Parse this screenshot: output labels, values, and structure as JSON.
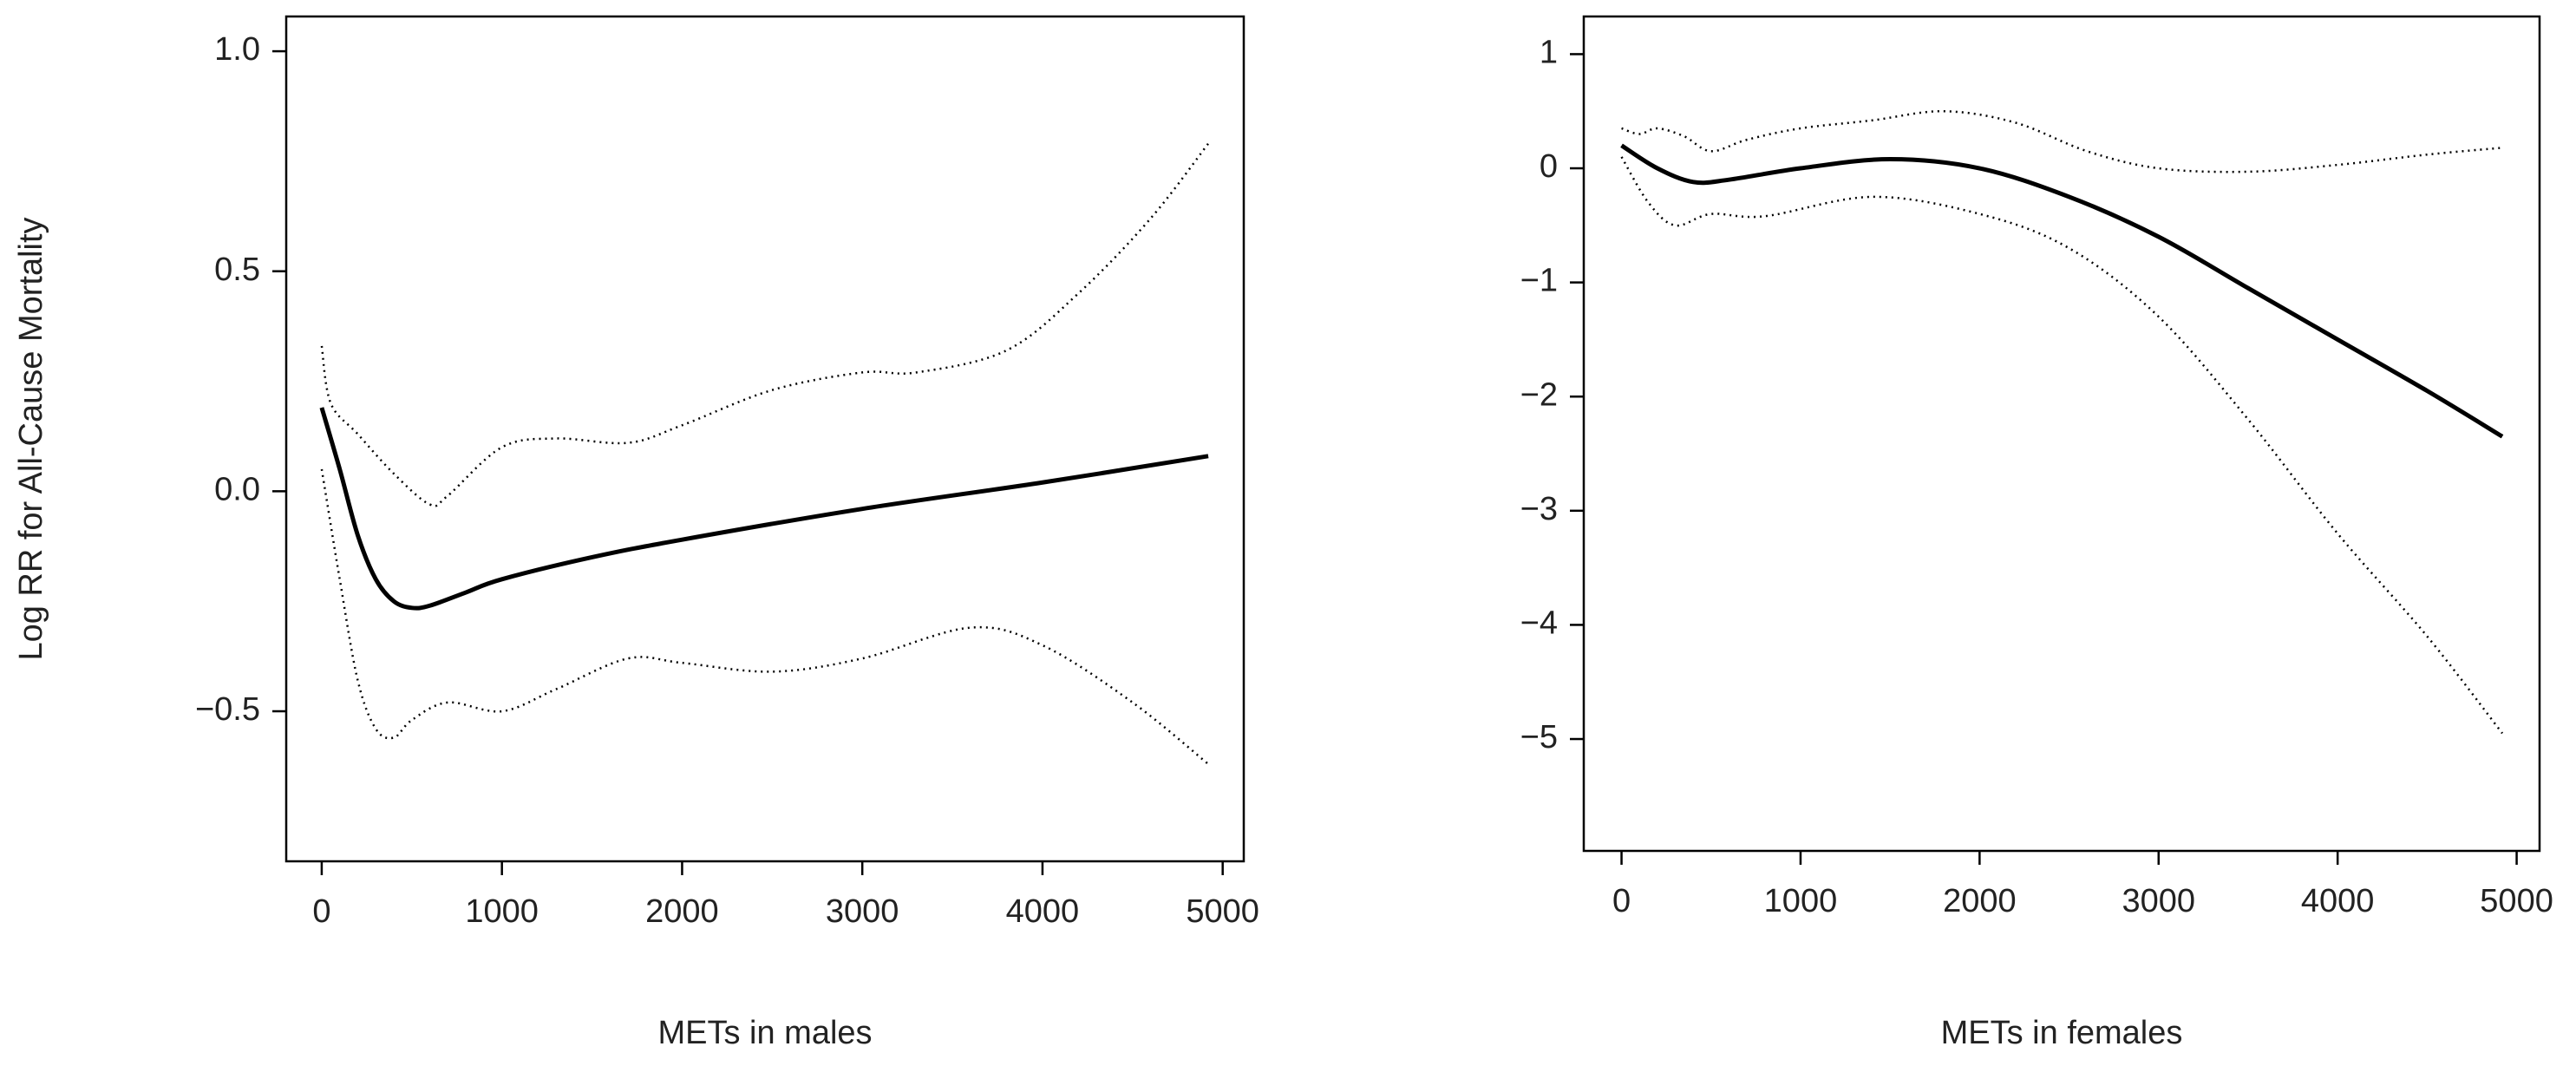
{
  "chart_data": [
    {
      "type": "line",
      "xlabel": "METs in males",
      "ylabel": "Log RR for All-Cause Mortality",
      "xlim": [
        -197,
        5117
      ],
      "ylim": [
        -0.841,
        1.079
      ],
      "xticks": [
        0,
        1000,
        2000,
        3000,
        4000,
        5000
      ],
      "yticks": [
        {
          "value": -0.5,
          "label": "−0.5"
        },
        {
          "value": 0,
          "label": "0.0"
        },
        0.5,
        {
          "value": 1,
          "label": "1.0"
        }
      ],
      "series": [
        {
          "color": "#000000",
          "linestyle": "solid",
          "x": [
            0,
            100,
            200,
            300,
            400,
            500,
            600,
            800,
            1000,
            1500,
            2000,
            3000,
            4000,
            4920
          ],
          "values": [
            0.19,
            0.05,
            -0.1,
            -0.2,
            -0.25,
            -0.265,
            -0.26,
            -0.23,
            -0.2,
            -0.15,
            -0.11,
            -0.04,
            0.02,
            0.08
          ]
        },
        {
          "color": "#000000",
          "linestyle": "dotted",
          "x": [
            0,
            50,
            200,
            400,
            600,
            700,
            1000,
            1300,
            1700,
            2000,
            2500,
            3000,
            3300,
            3800,
            4200,
            4600,
            4920
          ],
          "values": [
            0.33,
            0.2,
            0.13,
            0.04,
            -0.03,
            -0.01,
            0.1,
            0.12,
            0.11,
            0.15,
            0.23,
            0.27,
            0.27,
            0.32,
            0.45,
            0.62,
            0.79
          ]
        },
        {
          "color": "#000000",
          "linestyle": "dotted",
          "x": [
            0,
            100,
            200,
            300,
            400,
            500,
            700,
            1000,
            1300,
            1700,
            2000,
            2500,
            3000,
            3600,
            4000,
            4500,
            4920
          ],
          "values": [
            0.05,
            -0.2,
            -0.43,
            -0.54,
            -0.56,
            -0.52,
            -0.48,
            -0.5,
            -0.45,
            -0.38,
            -0.39,
            -0.41,
            -0.38,
            -0.31,
            -0.35,
            -0.48,
            -0.62
          ]
        }
      ]
    },
    {
      "type": "line",
      "xlabel": "METs in females",
      "xlim": [
        -211,
        5128
      ],
      "ylim": [
        -5.98,
        1.33
      ],
      "xticks": [
        0,
        1000,
        2000,
        3000,
        4000,
        5000
      ],
      "yticks": [
        {
          "value": -5,
          "label": "−5"
        },
        {
          "value": -4,
          "label": "−4"
        },
        {
          "value": -3,
          "label": "−3"
        },
        {
          "value": -2,
          "label": "−2"
        },
        {
          "value": -1,
          "label": "−1"
        },
        0,
        1
      ],
      "series": [
        {
          "color": "#000000",
          "linestyle": "solid",
          "x": [
            0,
            200,
            400,
            600,
            1000,
            1500,
            2000,
            2500,
            3000,
            3500,
            4000,
            4500,
            4920
          ],
          "values": [
            0.2,
            0,
            -0.12,
            -0.1,
            0,
            0.08,
            0,
            -0.25,
            -0.6,
            -1.05,
            -1.5,
            -1.95,
            -2.35
          ]
        },
        {
          "color": "#000000",
          "linestyle": "dotted",
          "x": [
            0,
            100,
            200,
            350,
            500,
            700,
            1000,
            1400,
            1800,
            2200,
            2600,
            3000,
            3500,
            4000,
            4500,
            4920
          ],
          "values": [
            0.35,
            0.3,
            0.35,
            0.28,
            0.15,
            0.25,
            0.35,
            0.42,
            0.5,
            0.4,
            0.15,
            0,
            -0.03,
            0.03,
            0.12,
            0.18
          ]
        },
        {
          "color": "#000000",
          "linestyle": "dotted",
          "x": [
            0,
            150,
            300,
            500,
            800,
            1400,
            2000,
            2500,
            3000,
            3500,
            4000,
            4500,
            4920
          ],
          "values": [
            0.1,
            -0.3,
            -0.5,
            -0.4,
            -0.42,
            -0.25,
            -0.4,
            -0.7,
            -1.3,
            -2.2,
            -3.2,
            -4.1,
            -4.95
          ]
        }
      ]
    }
  ]
}
